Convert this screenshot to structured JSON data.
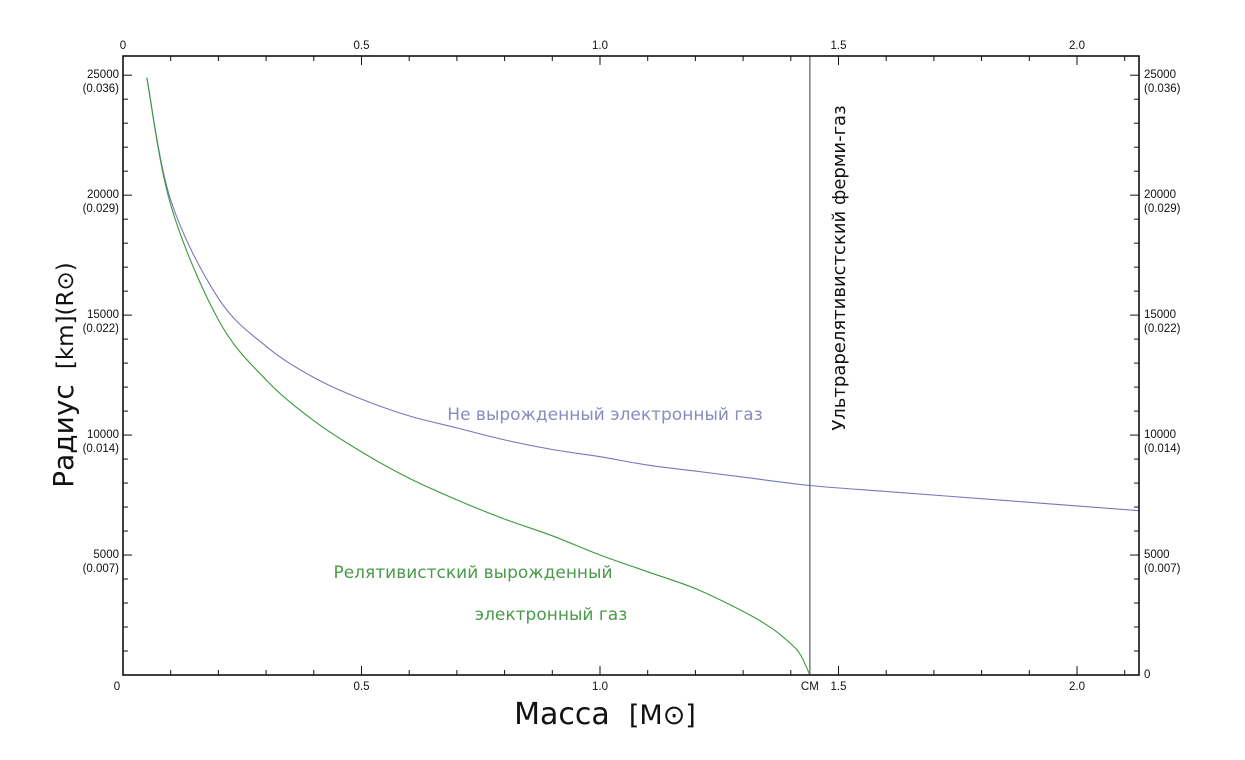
{
  "chart_data": {
    "type": "line",
    "xlabel": "Масса",
    "xlabel_unit": "[M⊙]",
    "ylabel": "Радиус",
    "ylabel_unit": "[km](R⊙)",
    "xlim": [
      0,
      2.13
    ],
    "ylim": [
      0,
      25800
    ],
    "x_ticks": [
      {
        "value": 0,
        "label": "0"
      },
      {
        "value": 0.5,
        "label": "0.5"
      },
      {
        "value": 1.0,
        "label": "1.0"
      },
      {
        "value": 1.44,
        "label": "CM"
      },
      {
        "value": 1.5,
        "label": "1.5"
      },
      {
        "value": 2.0,
        "label": "2.0"
      }
    ],
    "x_ticks_top": [
      {
        "value": 0,
        "label": "0"
      },
      {
        "value": 0.5,
        "label": "0.5"
      },
      {
        "value": 1.0,
        "label": "1.0"
      },
      {
        "value": 1.5,
        "label": "1.5"
      },
      {
        "value": 2.0,
        "label": "2.0"
      }
    ],
    "y_ticks": [
      {
        "value": 25000,
        "label": "25000",
        "sub": "(0.036)"
      },
      {
        "value": 20000,
        "label": "20000",
        "sub": "(0.029)"
      },
      {
        "value": 15000,
        "label": "15000",
        "sub": "(0.022)"
      },
      {
        "value": 10000,
        "label": "10000",
        "sub": "(0.014)"
      },
      {
        "value": 5000,
        "label": "5000",
        "sub": "(0.007)"
      }
    ],
    "y_ticks_right": [
      {
        "value": 25000,
        "label": "25000",
        "sub": "(0.036)"
      },
      {
        "value": 20000,
        "label": "20000",
        "sub": "(0.029)"
      },
      {
        "value": 15000,
        "label": "15000",
        "sub": "(0.022)"
      },
      {
        "value": 10000,
        "label": "10000",
        "sub": "(0.014)"
      },
      {
        "value": 5000,
        "label": "5000",
        "sub": "(0.007)"
      },
      {
        "value": 0,
        "label": "0",
        "sub": ""
      }
    ],
    "series": [
      {
        "name": "Не вырожденный электронный газ",
        "color": "#7777bb",
        "x": [
          0.05,
          0.1,
          0.2,
          0.3,
          0.4,
          0.5,
          0.6,
          0.7,
          0.8,
          0.9,
          1.0,
          1.1,
          1.2,
          1.3,
          1.44,
          1.6,
          1.8,
          2.0,
          2.13
        ],
        "y": [
          24900,
          19800,
          15700,
          13700,
          12400,
          11500,
          10800,
          10300,
          9800,
          9400,
          9100,
          8750,
          8500,
          8250,
          7900,
          7650,
          7350,
          7050,
          6850
        ]
      },
      {
        "name": "Релятивистский вырожденный электронный газ",
        "color": "#3a9a3a",
        "x": [
          0.05,
          0.1,
          0.2,
          0.3,
          0.4,
          0.5,
          0.6,
          0.7,
          0.8,
          0.9,
          1.0,
          1.1,
          1.2,
          1.3,
          1.36,
          1.4,
          1.42,
          1.44
        ],
        "y": [
          24900,
          19600,
          14800,
          12300,
          10600,
          9300,
          8200,
          7300,
          6500,
          5800,
          5000,
          4300,
          3600,
          2650,
          1950,
          1300,
          850,
          0
        ]
      }
    ],
    "vertical_line": {
      "x": 1.44,
      "label": "Ультрарелятивистский ферми-газ",
      "color": "#666677"
    },
    "annotations": [
      {
        "id": "nondeg",
        "text": "Не вырожденный электронный газ",
        "color": "#8a8ac0"
      },
      {
        "id": "rel1",
        "text": "Релятивистский вырожденный",
        "color": "#4a9a4a"
      },
      {
        "id": "rel2",
        "text": "электронный газ",
        "color": "#4a9a4a"
      }
    ],
    "grid": false,
    "minor_tick_step_x": 0.1,
    "minor_tick_step_y": 1000
  }
}
